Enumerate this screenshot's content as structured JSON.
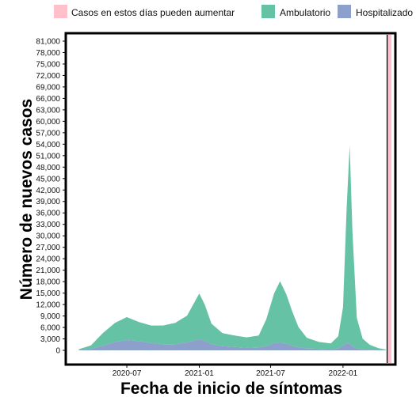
{
  "chart_data": {
    "type": "area",
    "title": "",
    "xlabel": "Fecha de inicio de síntomas",
    "ylabel": "Número de nuevos casos",
    "ylim": [
      0,
      81000
    ],
    "yticks": [
      0,
      3000,
      6000,
      9000,
      12000,
      15000,
      18000,
      21000,
      24000,
      27000,
      30000,
      33000,
      36000,
      39000,
      42000,
      45000,
      48000,
      51000,
      54000,
      57000,
      60000,
      63000,
      66000,
      69000,
      72000,
      75000,
      78000,
      81000
    ],
    "ytick_labels": [
      "0",
      "3,000",
      "6,000",
      "9,000",
      "12,000",
      "15,000",
      "18,000",
      "21,000",
      "24,000",
      "27,000",
      "30,000",
      "33,000",
      "36,000",
      "39,000",
      "42,000",
      "45,000",
      "48,000",
      "51,000",
      "54,000",
      "57,000",
      "60,000",
      "63,000",
      "66,000",
      "69,000",
      "72,000",
      "75,000",
      "78,000",
      "81,000"
    ],
    "xlim": [
      "2020-02-01",
      "2022-05-10"
    ],
    "xticks": [
      "2020-07-01",
      "2021-01-01",
      "2021-07-01",
      "2022-01-01"
    ],
    "xtick_labels": [
      "2020-07",
      "2021-01",
      "2021-07",
      "2022-01"
    ],
    "stacked": true,
    "x": [
      "2020-03-01",
      "2020-04-01",
      "2020-05-01",
      "2020-06-01",
      "2020-07-01",
      "2020-08-01",
      "2020-09-01",
      "2020-10-01",
      "2020-11-01",
      "2020-12-01",
      "2021-01-01",
      "2021-01-15",
      "2021-02-01",
      "2021-03-01",
      "2021-04-01",
      "2021-05-01",
      "2021-06-01",
      "2021-06-20",
      "2021-07-10",
      "2021-07-25",
      "2021-08-10",
      "2021-08-25",
      "2021-09-10",
      "2021-10-01",
      "2021-11-01",
      "2021-12-01",
      "2021-12-20",
      "2022-01-01",
      "2022-01-10",
      "2022-01-18",
      "2022-01-25",
      "2022-02-05",
      "2022-02-20",
      "2022-03-10",
      "2022-04-01",
      "2022-04-20"
    ],
    "series": [
      {
        "name": "Hospitalizado",
        "color": "#8da0cb",
        "values": [
          100,
          400,
          1200,
          2200,
          2700,
          2400,
          1900,
          1600,
          1600,
          2100,
          2900,
          2500,
          1600,
          1100,
          900,
          700,
          800,
          1100,
          1900,
          2100,
          1700,
          1200,
          800,
          500,
          400,
          300,
          500,
          1300,
          1900,
          1700,
          1100,
          500,
          250,
          150,
          80,
          30
        ]
      },
      {
        "name": "Ambulatorio",
        "color": "#66c2a5",
        "values": [
          200,
          900,
          3300,
          5000,
          6000,
          5000,
          4600,
          4900,
          5600,
          7000,
          12000,
          9500,
          5400,
          3400,
          3000,
          2700,
          3100,
          7000,
          13000,
          16000,
          13000,
          9000,
          5300,
          2800,
          1800,
          1500,
          3200,
          10000,
          35000,
          52000,
          30000,
          8000,
          2800,
          1300,
          500,
          170
        ]
      }
    ],
    "annotation": {
      "label": "Casos en estos días pueden aumentar",
      "color": "#ffc0cb",
      "from": "2022-04-23",
      "to": "2022-05-04"
    }
  }
}
